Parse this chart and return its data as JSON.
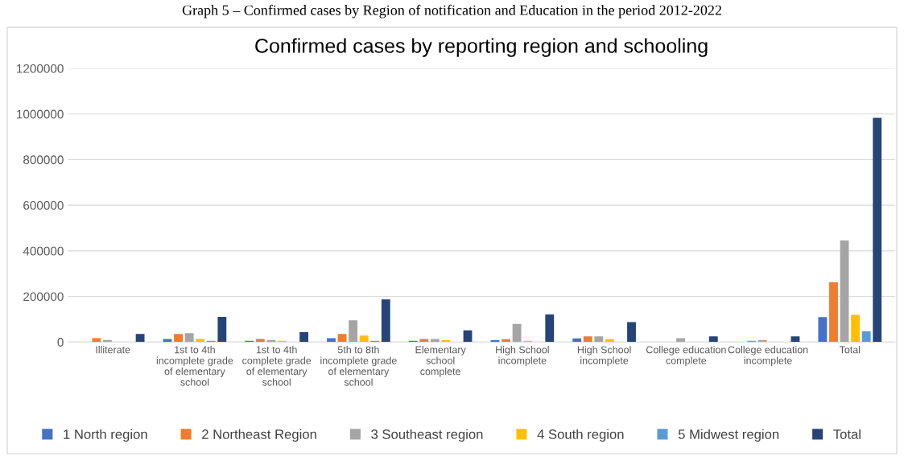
{
  "chart_data": {
    "type": "bar",
    "title": "Confirmed cases by reporting region and schooling",
    "annotations": [
      "Graph 5 – Confirmed cases by Region of notification and Education in the period 2012-2022"
    ],
    "categories": [
      "Illiterate",
      "1st to 4th\nincomplete grade\nof elementary\nschool",
      "1st to 4th\ncomplete grade\nof elementary\nschool",
      "5th to 8th\nincomplete grade\nof elementary\nschool",
      "Elementary\nschool\ncomplete",
      "High School\nincomplete",
      "High School\nincomplete",
      "College education\ncomplete",
      "College education\nincomplete",
      "Total"
    ],
    "series": [
      {
        "name": "1 North region",
        "color": "#4472c4",
        "values": [
          null,
          13000,
          5000,
          17000,
          5000,
          8000,
          16000,
          null,
          null,
          109000
        ]
      },
      {
        "name": "2 Northeast Region",
        "color": "#ed7d31",
        "values": [
          17000,
          35000,
          13000,
          35000,
          13000,
          12000,
          25000,
          null,
          5000,
          262000
        ]
      },
      {
        "name": "3 Southeast region",
        "color": "#a5a5a5",
        "values": [
          9000,
          39000,
          9000,
          95000,
          13000,
          79000,
          25000,
          17000,
          9000,
          445000
        ]
      },
      {
        "name": "4 South region",
        "color": "#ffc000",
        "values": [
          null,
          13000,
          5000,
          28000,
          9000,
          5000,
          12000,
          null,
          null,
          119000
        ]
      },
      {
        "name": "5 Midwest region",
        "color": "#5b9bd5",
        "values": [
          null,
          5000,
          null,
          5000,
          null,
          null,
          null,
          null,
          null,
          47000
        ]
      },
      {
        "name": "Total",
        "color": "#264478",
        "values": [
          35000,
          110000,
          43000,
          187000,
          51000,
          121000,
          87000,
          25000,
          25000,
          983000
        ]
      }
    ],
    "ylim": [
      0,
      1200000
    ],
    "yticks": [
      0,
      200000,
      400000,
      600000,
      800000,
      1000000,
      1200000
    ],
    "grid": "y",
    "legend": "bottom"
  }
}
